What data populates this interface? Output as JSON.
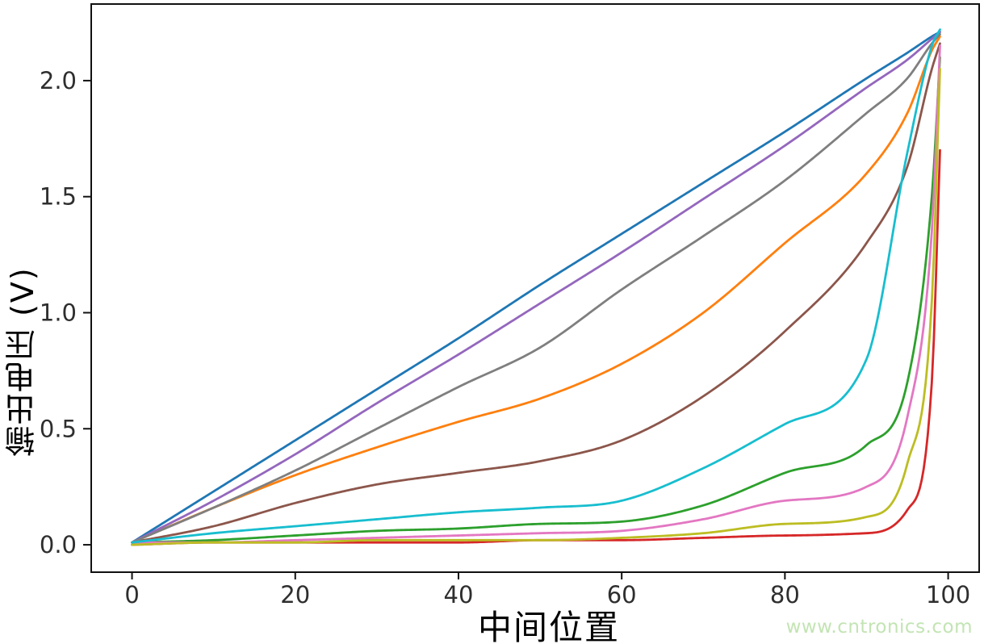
{
  "watermark": {
    "text": "www.cntronics.com",
    "color": "#c3e4b4"
  },
  "chart_data": {
    "type": "line",
    "title": "",
    "xlabel": "中间位置",
    "ylabel": "输出电压 (V)",
    "xlim": [
      -5.0,
      103.8
    ],
    "ylim": [
      -0.118,
      2.33
    ],
    "xticks": [
      "0",
      "20",
      "40",
      "60",
      "80",
      "100"
    ],
    "xtick_values": [
      0,
      20,
      40,
      60,
      80,
      100
    ],
    "yticks": [
      "0.0",
      "0.5",
      "1.0",
      "1.5",
      "2.0"
    ],
    "ytick_values": [
      0.0,
      0.5,
      1.0,
      1.5,
      2.0
    ],
    "grid": false,
    "legend": "none",
    "axis_color": "#111111",
    "tick_label_color": "#2e2e2e",
    "x": [
      0,
      10,
      20,
      30,
      40,
      50,
      60,
      70,
      80,
      90,
      95,
      98,
      99
    ],
    "series": [
      {
        "name": "curve-1-blue",
        "color": "#1f77b4",
        "values": [
          0.01,
          0.23,
          0.45,
          0.67,
          0.89,
          1.12,
          1.34,
          1.56,
          1.78,
          2.01,
          2.12,
          2.19,
          2.21
        ]
      },
      {
        "name": "curve-2-orange",
        "color": "#ff7f0e",
        "values": [
          0.01,
          0.16,
          0.3,
          0.42,
          0.53,
          0.63,
          0.78,
          1.0,
          1.3,
          1.6,
          1.86,
          2.13,
          2.19
        ]
      },
      {
        "name": "curve-3-green",
        "color": "#2ca02c",
        "values": [
          0.01,
          0.02,
          0.04,
          0.06,
          0.07,
          0.09,
          0.1,
          0.17,
          0.31,
          0.43,
          0.7,
          1.5,
          2.1
        ]
      },
      {
        "name": "curve-4-red",
        "color": "#d62728",
        "values": [
          0.0,
          0.01,
          0.01,
          0.01,
          0.01,
          0.02,
          0.02,
          0.03,
          0.04,
          0.05,
          0.15,
          0.7,
          1.7
        ]
      },
      {
        "name": "curve-5-purple",
        "color": "#9467bd",
        "values": [
          0.01,
          0.19,
          0.39,
          0.61,
          0.82,
          1.04,
          1.26,
          1.49,
          1.72,
          1.97,
          2.09,
          2.18,
          2.21
        ]
      },
      {
        "name": "curve-6-brown",
        "color": "#8c564b",
        "values": [
          0.01,
          0.08,
          0.18,
          0.26,
          0.31,
          0.36,
          0.45,
          0.64,
          0.92,
          1.3,
          1.63,
          2.05,
          2.16
        ]
      },
      {
        "name": "curve-7-pink",
        "color": "#e377c2",
        "values": [
          0.01,
          0.01,
          0.02,
          0.03,
          0.04,
          0.05,
          0.06,
          0.11,
          0.19,
          0.25,
          0.55,
          1.35,
          2.15
        ]
      },
      {
        "name": "curve-8-gray",
        "color": "#7f7f7f",
        "values": [
          0.01,
          0.16,
          0.32,
          0.5,
          0.68,
          0.85,
          1.1,
          1.33,
          1.57,
          1.86,
          2.01,
          2.16,
          2.2
        ]
      },
      {
        "name": "curve-9-olive",
        "color": "#bcbd22",
        "values": [
          0.0,
          0.01,
          0.01,
          0.02,
          0.02,
          0.02,
          0.03,
          0.05,
          0.09,
          0.12,
          0.35,
          1.05,
          2.05
        ]
      },
      {
        "name": "curve-10-cyan",
        "color": "#17becf",
        "values": [
          0.01,
          0.05,
          0.08,
          0.11,
          0.14,
          0.16,
          0.19,
          0.33,
          0.52,
          0.8,
          1.69,
          2.15,
          2.22
        ]
      }
    ]
  }
}
